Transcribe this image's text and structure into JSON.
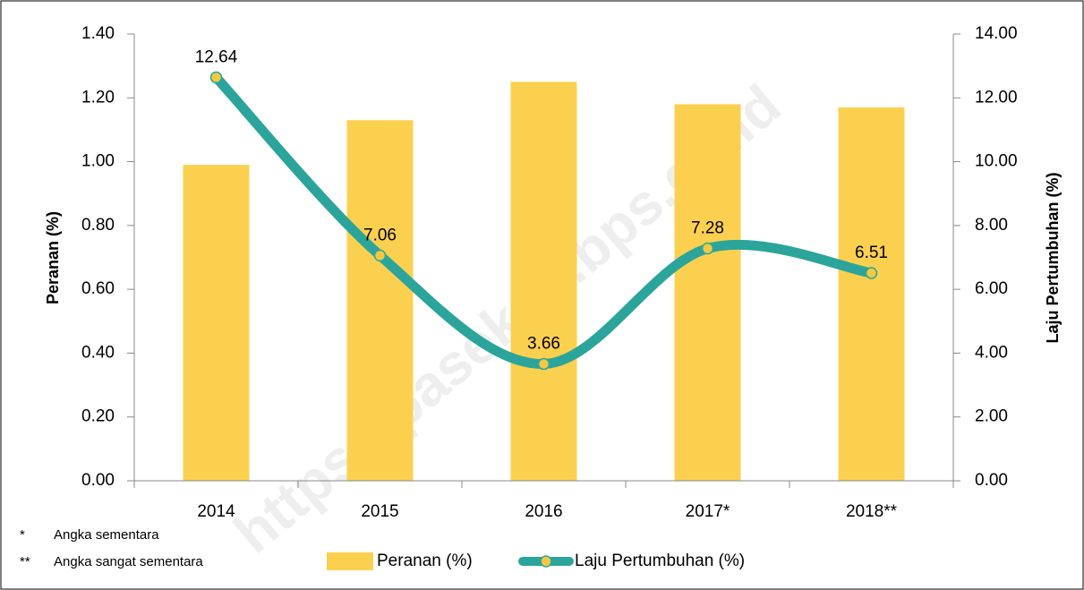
{
  "chart_data": {
    "type": "bar-line",
    "categories": [
      "2014",
      "2015",
      "2016",
      "2017*",
      "2018**"
    ],
    "series": [
      {
        "name": "Peranan (%)",
        "type": "bar",
        "color": "#fcd04f",
        "values": [
          0.99,
          1.13,
          1.25,
          1.18,
          1.17
        ]
      },
      {
        "name": "Laju Pertumbuhan (%)",
        "type": "line",
        "axis": "y2",
        "color": "#2ba59b",
        "marker_color": "#f5c842",
        "values": [
          12.64,
          7.06,
          3.66,
          7.28,
          6.51
        ]
      }
    ],
    "ylabel": "Peranan (%)",
    "y2label": "Laju Pertumbuhan (%)",
    "ylim": [
      0,
      1.4
    ],
    "yticks": [
      {
        "value": 0,
        "label": "0.00"
      },
      {
        "value": 0.2,
        "label": "0.20"
      },
      {
        "value": 0.4,
        "label": "0.40"
      },
      {
        "value": 0.6,
        "label": "0.60"
      },
      {
        "value": 0.8,
        "label": "0.80"
      },
      {
        "value": 1,
        "label": "1.00"
      },
      {
        "value": 1.2,
        "label": "1.20"
      },
      {
        "value": 1.4,
        "label": "1.40"
      }
    ],
    "y2lim": [
      0,
      14
    ],
    "y2ticks": [
      {
        "value": 0,
        "label": "0.00"
      },
      {
        "value": 2,
        "label": "2.00"
      },
      {
        "value": 4,
        "label": "4.00"
      },
      {
        "value": 6,
        "label": "6.00"
      },
      {
        "value": 8,
        "label": "8.00"
      },
      {
        "value": 10,
        "label": "10.00"
      },
      {
        "value": 12,
        "label": "12.00"
      },
      {
        "value": 14,
        "label": "14.00"
      }
    ],
    "notes": [
      {
        "marker": "*",
        "text": "Angka sementara"
      },
      {
        "marker": "**",
        "text": "Angka sangat sementara"
      }
    ],
    "watermark": "https://pasekab.bps.go.id",
    "legend": "bottom"
  }
}
